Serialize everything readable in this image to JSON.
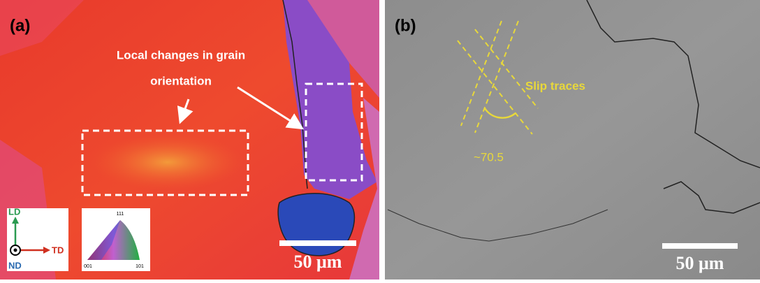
{
  "panels": [
    {
      "label": "(a)",
      "annotation": [
        "Local changes in grain",
        "orientation"
      ],
      "scale_bar": "50 μm",
      "axes": {
        "up": "LD",
        "right": "TD",
        "out": "ND"
      },
      "triangle": {
        "top": "111",
        "left": "001",
        "right": "101"
      }
    },
    {
      "label": "(b)",
      "annotation": "Slip traces",
      "angle": "~70.5",
      "scale_bar": "50 μm"
    }
  ]
}
